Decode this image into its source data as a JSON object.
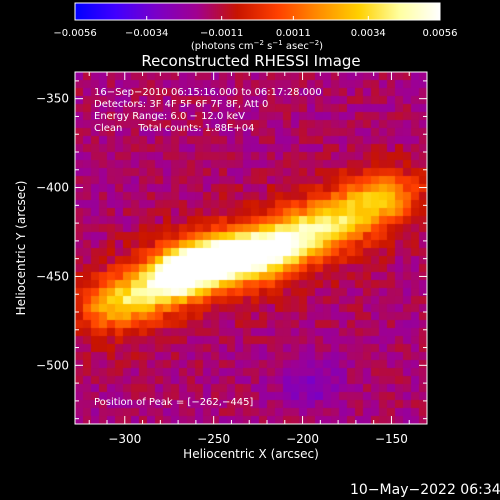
{
  "chart_data": {
    "type": "heatmap",
    "title": "Reconstructed RHESSI Image",
    "xlabel": "Heliocentric X (arcsec)",
    "ylabel": "Heliocentric Y (arcsec)",
    "xlim": [
      -328,
      -130
    ],
    "ylim": [
      -533,
      -335
    ],
    "x_ticks": [
      {
        "value": -300,
        "label": "−300"
      },
      {
        "value": -250,
        "label": "−250"
      },
      {
        "value": -200,
        "label": "−200"
      },
      {
        "value": -150,
        "label": "−150"
      }
    ],
    "y_ticks": [
      {
        "value": -350,
        "label": "−350"
      },
      {
        "value": -400,
        "label": "−400"
      },
      {
        "value": -450,
        "label": "−450"
      },
      {
        "value": -500,
        "label": "−500"
      }
    ],
    "colorbar": {
      "min": -0.0056,
      "max": 0.0056,
      "tick_values": [
        -0.0056,
        -0.0034,
        -0.0011,
        0.0011,
        0.0034,
        0.0056
      ],
      "tick_labels": [
        "−0.0056",
        "−0.0034",
        "−0.0011",
        "0.0011",
        "0.0034",
        "0.0056"
      ],
      "unit_label": "(photons cm",
      "unit_exp1": "−2",
      "unit_mid": " s",
      "unit_exp2": "−1",
      "unit_mid2": " asec",
      "unit_exp3": "−2",
      "unit_end": ")"
    },
    "grid": false,
    "peak": {
      "x": -262,
      "y": -445
    },
    "ridge": [
      {
        "x": -312,
        "y": -468,
        "amp": 0.0018
      },
      {
        "x": -295,
        "y": -462,
        "amp": 0.003
      },
      {
        "x": -275,
        "y": -452,
        "amp": 0.0046
      },
      {
        "x": -262,
        "y": -445,
        "amp": 0.0056
      },
      {
        "x": -245,
        "y": -440,
        "amp": 0.005
      },
      {
        "x": -228,
        "y": -438,
        "amp": 0.0046
      },
      {
        "x": -212,
        "y": -432,
        "amp": 0.0042
      },
      {
        "x": -195,
        "y": -425,
        "amp": 0.003
      },
      {
        "x": -178,
        "y": -418,
        "amp": 0.0024
      },
      {
        "x": -162,
        "y": -408,
        "amp": 0.002
      },
      {
        "x": -148,
        "y": -405,
        "amp": 0.0014
      }
    ],
    "background_level": -0.0016,
    "colors": {
      "colormap": [
        "#0000ff",
        "#4000ff",
        "#7a00c8",
        "#a00090",
        "#c81400",
        "#ff4000",
        "#ff8c00",
        "#ffd000",
        "#ffffa0",
        "#ffffff"
      ]
    }
  },
  "annotations": {
    "line1": "16−Sep−2010 06:15:16.000 to 06:17:28.000",
    "line2": "Detectors: 3F 4F 5F 6F 7F 8F, Att 0",
    "line3": "Energy Range: 6.0 − 12.0 keV",
    "line4": "Clean     Total counts: 1.88E+04",
    "peak_label": "Position of Peak = [−262,−445]"
  },
  "footer": {
    "timestamp": "10−May−2022 06:34"
  }
}
